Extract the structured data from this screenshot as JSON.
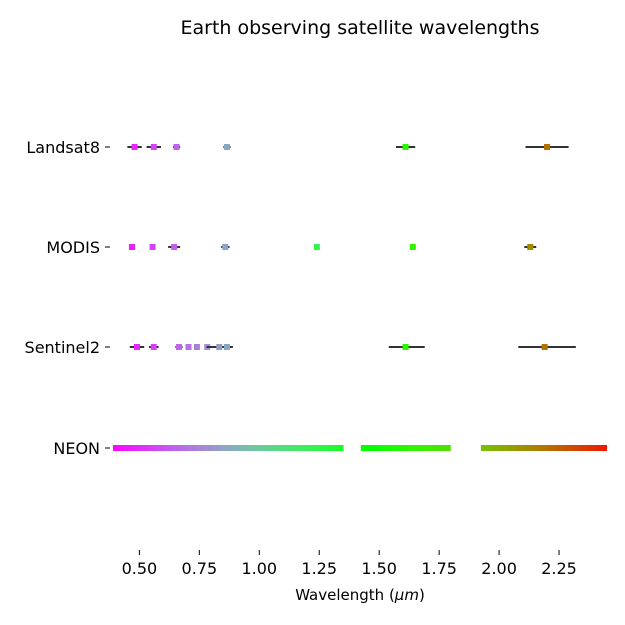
{
  "chart_data": {
    "type": "scatter",
    "title": "Earth observing satellite wavelengths",
    "xlabel_text": "Wavelength (",
    "xlabel_mu": "μm",
    "xlabel_close": ")",
    "ylabel": "",
    "xlim": [
      0.39,
      2.45
    ],
    "xticks": [
      0.5,
      0.75,
      1.0,
      1.25,
      1.5,
      1.75,
      2.0,
      2.25
    ],
    "xtick_labels": [
      "0.50",
      "0.75",
      "1.00",
      "1.25",
      "1.50",
      "1.75",
      "2.00",
      "2.25"
    ],
    "categories": [
      "Landsat8",
      "MODIS",
      "Sentinel2",
      "NEON"
    ],
    "grid": false,
    "series": [
      {
        "name": "Landsat8",
        "bands": [
          {
            "center": 0.48,
            "min": 0.45,
            "max": 0.51
          },
          {
            "center": 0.56,
            "min": 0.53,
            "max": 0.59
          },
          {
            "center": 0.655,
            "min": 0.64,
            "max": 0.67
          },
          {
            "center": 0.865,
            "min": 0.85,
            "max": 0.88
          },
          {
            "center": 1.61,
            "min": 1.57,
            "max": 1.65
          },
          {
            "center": 2.2,
            "min": 2.11,
            "max": 2.29
          }
        ]
      },
      {
        "name": "MODIS",
        "bands": [
          {
            "center": 0.469,
            "min": 0.459,
            "max": 0.479
          },
          {
            "center": 0.555,
            "min": 0.545,
            "max": 0.565
          },
          {
            "center": 0.645,
            "min": 0.62,
            "max": 0.67
          },
          {
            "center": 0.858,
            "min": 0.841,
            "max": 0.876
          },
          {
            "center": 1.24,
            "min": 1.23,
            "max": 1.25
          },
          {
            "center": 1.64,
            "min": 1.628,
            "max": 1.652
          },
          {
            "center": 2.13,
            "min": 2.105,
            "max": 2.155
          }
        ]
      },
      {
        "name": "Sentinel2",
        "bands": [
          {
            "center": 0.49,
            "min": 0.46,
            "max": 0.52
          },
          {
            "center": 0.56,
            "min": 0.54,
            "max": 0.58
          },
          {
            "center": 0.665,
            "min": 0.65,
            "max": 0.68
          },
          {
            "center": 0.705,
            "min": 0.698,
            "max": 0.713
          },
          {
            "center": 0.74,
            "min": 0.733,
            "max": 0.748
          },
          {
            "center": 0.783,
            "min": 0.773,
            "max": 0.793
          },
          {
            "center": 0.833,
            "min": 0.78,
            "max": 0.89
          },
          {
            "center": 0.865,
            "min": 0.855,
            "max": 0.875
          },
          {
            "center": 1.61,
            "min": 1.54,
            "max": 1.69
          },
          {
            "center": 2.19,
            "min": 2.08,
            "max": 2.32
          }
        ]
      }
    ],
    "neon": {
      "name": "NEON",
      "range": [
        0.38,
        2.51
      ],
      "gaps": [
        [
          1.35,
          1.42
        ],
        [
          1.8,
          1.92
        ]
      ]
    }
  }
}
